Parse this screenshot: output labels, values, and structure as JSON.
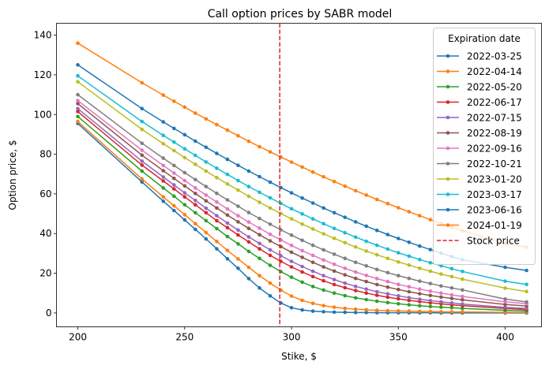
{
  "chart_data": {
    "type": "line",
    "title": "Call option prices by SABR model",
    "xlabel": "Stike, $",
    "ylabel": "Option price, $",
    "xlim": [
      190,
      417
    ],
    "ylim": [
      -7,
      146
    ],
    "xticks": [
      200,
      250,
      300,
      350,
      400
    ],
    "yticks": [
      0,
      20,
      40,
      60,
      80,
      100,
      120,
      140
    ],
    "grid": false,
    "legend": {
      "title": "Expiration date",
      "position": "top-right"
    },
    "x": [
      200,
      230,
      240,
      245,
      250,
      255,
      260,
      265,
      270,
      275,
      280,
      285,
      290,
      295,
      300,
      305,
      310,
      315,
      320,
      325,
      330,
      335,
      340,
      345,
      350,
      355,
      360,
      365,
      370,
      375,
      380,
      400,
      410
    ],
    "vline": {
      "x": 294.5,
      "label": "Stock price",
      "color": "#d62728",
      "style": "dashed"
    },
    "series": [
      {
        "name": "2022-03-25",
        "color": "#1f77b4",
        "values": [
          95.5,
          66.0,
          56.3,
          51.6,
          46.9,
          42.1,
          37.3,
          32.3,
          27.3,
          22.5,
          17.3,
          12.6,
          8.6,
          5.0,
          2.6,
          1.5,
          0.9,
          0.6,
          0.4,
          0.3,
          0.2,
          0.2,
          0.1,
          0.1,
          0.1,
          0.1,
          0.1,
          0.1,
          0.0,
          0.0,
          0.0,
          0.0,
          0.0
        ]
      },
      {
        "name": "2022-04-14",
        "color": "#ff7f0e",
        "values": [
          96.5,
          67.5,
          58.5,
          54.0,
          49.5,
          45.0,
          40.5,
          36.0,
          31.5,
          27.2,
          23.0,
          18.8,
          15.0,
          11.5,
          8.5,
          6.3,
          4.8,
          3.7,
          2.9,
          2.3,
          1.9,
          1.6,
          1.3,
          1.1,
          1.0,
          0.9,
          0.8,
          0.7,
          0.6,
          0.5,
          0.5,
          0.3,
          0.3
        ]
      },
      {
        "name": "2022-05-20",
        "color": "#2ca02c",
        "values": [
          99.0,
          71.5,
          63.0,
          58.8,
          54.5,
          50.5,
          46.5,
          42.5,
          38.5,
          34.8,
          31.0,
          27.5,
          24.0,
          20.8,
          18.0,
          15.5,
          13.3,
          11.5,
          10.0,
          8.7,
          7.6,
          6.7,
          5.9,
          5.2,
          4.6,
          4.1,
          3.6,
          3.2,
          2.9,
          2.6,
          2.3,
          1.3,
          1.0
        ]
      },
      {
        "name": "2022-06-17",
        "color": "#d62728",
        "values": [
          101.5,
          74.5,
          66.5,
          62.5,
          58.5,
          54.5,
          50.5,
          46.5,
          43.0,
          39.3,
          35.8,
          32.3,
          29.0,
          26.0,
          23.2,
          20.6,
          18.3,
          16.2,
          14.3,
          12.7,
          11.3,
          10.0,
          8.9,
          7.9,
          7.1,
          6.3,
          5.7,
          5.1,
          4.6,
          4.1,
          3.7,
          2.2,
          1.7
        ]
      },
      {
        "name": "2022-07-15",
        "color": "#9467bd",
        "values": [
          103.0,
          76.5,
          68.5,
          64.5,
          60.5,
          56.7,
          52.8,
          49.0,
          45.3,
          41.8,
          38.3,
          35.0,
          31.8,
          28.8,
          26.0,
          23.4,
          21.0,
          18.8,
          16.8,
          15.0,
          13.4,
          12.0,
          10.7,
          9.6,
          8.6,
          7.7,
          6.9,
          6.2,
          5.6,
          5.0,
          4.5,
          2.8,
          2.2
        ]
      },
      {
        "name": "2022-08-19",
        "color": "#8c564b",
        "values": [
          105.5,
          79.5,
          71.7,
          67.8,
          64.0,
          60.2,
          56.5,
          52.9,
          49.3,
          45.9,
          42.6,
          39.4,
          36.3,
          33.4,
          30.6,
          28.0,
          25.5,
          23.2,
          21.1,
          19.2,
          17.4,
          15.8,
          14.3,
          13.0,
          11.8,
          10.7,
          9.7,
          8.8,
          8.0,
          7.3,
          6.6,
          4.3,
          3.5
        ]
      },
      {
        "name": "2022-09-16",
        "color": "#e377c2",
        "values": [
          107.0,
          82.0,
          74.3,
          70.5,
          66.7,
          63.0,
          59.4,
          55.9,
          52.4,
          49.0,
          45.8,
          42.7,
          39.6,
          36.8,
          34.0,
          31.4,
          29.0,
          26.7,
          24.5,
          22.5,
          20.6,
          18.9,
          17.3,
          15.8,
          14.4,
          13.2,
          12.0,
          11.0,
          10.0,
          9.1,
          8.3,
          5.6,
          4.6
        ]
      },
      {
        "name": "2022-10-21",
        "color": "#7f7f7f",
        "values": [
          110.0,
          85.5,
          78.0,
          74.3,
          70.7,
          67.2,
          63.7,
          60.3,
          57.0,
          53.8,
          50.6,
          47.6,
          44.7,
          41.9,
          39.2,
          36.6,
          34.1,
          31.8,
          29.6,
          27.5,
          25.5,
          23.7,
          21.9,
          20.3,
          18.8,
          17.4,
          16.0,
          14.8,
          13.6,
          12.6,
          11.6,
          7.0,
          5.5
        ]
      },
      {
        "name": "2023-01-20",
        "color": "#bcbd22",
        "values": [
          116.5,
          92.5,
          85.3,
          81.8,
          78.3,
          74.9,
          71.5,
          68.2,
          65.0,
          61.9,
          58.8,
          55.8,
          52.9,
          50.1,
          47.4,
          44.8,
          42.3,
          39.9,
          37.6,
          35.4,
          33.2,
          31.2,
          29.3,
          27.5,
          25.7,
          24.1,
          22.5,
          21.0,
          19.6,
          18.3,
          17.0,
          12.5,
          10.8
        ]
      },
      {
        "name": "2023-03-17",
        "color": "#17becf",
        "values": [
          119.5,
          96.5,
          89.5,
          86.1,
          82.7,
          79.4,
          76.1,
          72.9,
          69.8,
          66.7,
          63.7,
          60.8,
          58.0,
          55.2,
          52.5,
          49.9,
          47.4,
          45.0,
          42.6,
          40.4,
          38.2,
          36.1,
          34.1,
          32.2,
          30.3,
          28.6,
          26.9,
          25.3,
          23.8,
          22.3,
          20.9,
          16.0,
          14.4
        ]
      },
      {
        "name": "2023-06-16",
        "color": "#1f77b4",
        "values": [
          125.0,
          103.0,
          96.3,
          93.0,
          89.8,
          86.6,
          83.5,
          80.4,
          77.4,
          74.4,
          71.5,
          68.7,
          65.9,
          63.2,
          60.5,
          57.9,
          55.4,
          52.9,
          50.5,
          48.2,
          45.9,
          43.7,
          41.6,
          39.5,
          37.5,
          35.6,
          33.7,
          31.9,
          30.1,
          28.4,
          26.8,
          23.0,
          21.4
        ]
      },
      {
        "name": "2024-01-19",
        "color": "#ff7f0e",
        "values": [
          136.0,
          116.0,
          109.8,
          106.7,
          103.7,
          100.7,
          97.8,
          94.9,
          92.1,
          89.3,
          86.5,
          83.8,
          81.2,
          78.6,
          76.0,
          73.5,
          71.0,
          68.6,
          66.2,
          63.9,
          61.6,
          59.4,
          57.2,
          55.1,
          53.0,
          51.0,
          49.0,
          47.0,
          45.1,
          43.2,
          41.4,
          35.0,
          33.0
        ]
      }
    ]
  }
}
